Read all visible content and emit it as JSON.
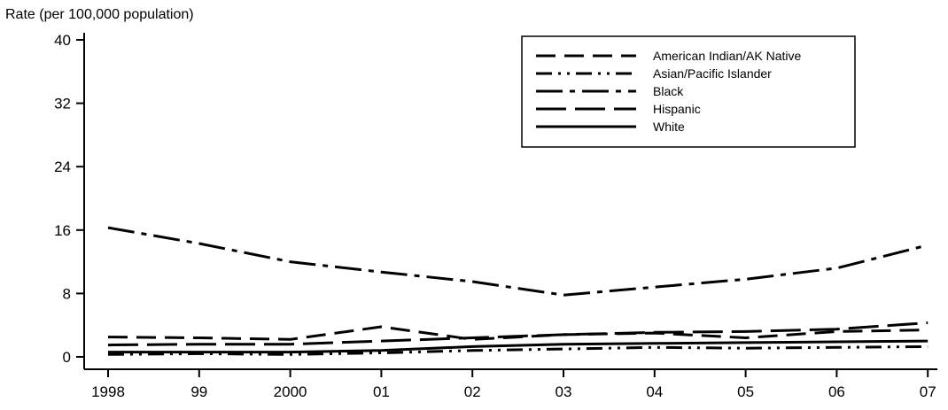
{
  "chart_data": {
    "type": "line",
    "title": "",
    "xlabel": "",
    "ylabel": "Rate (per 100,000 population)",
    "categories": [
      "1998",
      "99",
      "2000",
      "01",
      "02",
      "03",
      "04",
      "05",
      "06",
      "07"
    ],
    "ylim": [
      0,
      40
    ],
    "yticks": [
      0,
      8,
      16,
      24,
      32,
      40
    ],
    "grid": false,
    "legend_position": "top-right",
    "series": [
      {
        "name": "American Indian/AK Native",
        "values": [
          2.5,
          2.4,
          2.2,
          3.8,
          2.2,
          2.8,
          3.0,
          2.4,
          3.2,
          3.4
        ]
      },
      {
        "name": "Asian/Pacific Islander",
        "values": [
          0.3,
          0.4,
          0.3,
          0.5,
          0.8,
          1.0,
          1.2,
          1.1,
          1.2,
          1.3
        ]
      },
      {
        "name": "Black",
        "values": [
          16.3,
          14.3,
          12.0,
          10.7,
          9.5,
          7.8,
          8.8,
          9.8,
          11.2,
          14.1
        ]
      },
      {
        "name": "Hispanic",
        "values": [
          1.5,
          1.6,
          1.6,
          2.0,
          2.4,
          2.8,
          3.1,
          3.2,
          3.5,
          4.3
        ]
      },
      {
        "name": "White",
        "values": [
          0.6,
          0.6,
          0.6,
          0.8,
          1.3,
          1.6,
          1.7,
          1.8,
          1.9,
          2.0
        ]
      }
    ]
  }
}
